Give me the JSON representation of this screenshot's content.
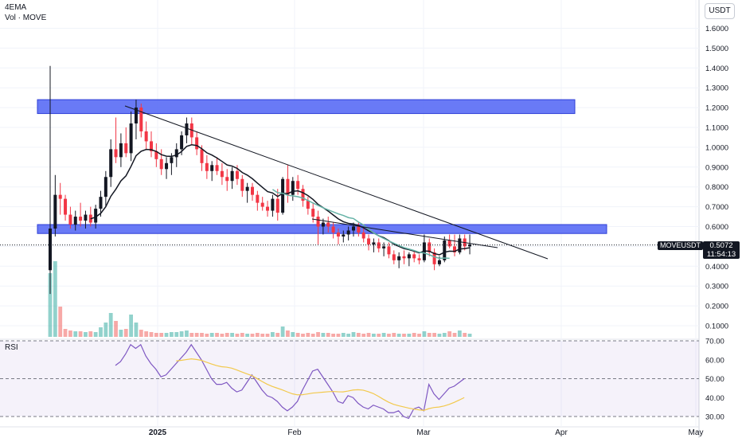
{
  "header": {
    "indicator": "4EMA",
    "volume_label": "Vol · MOVE",
    "currency": "USDT"
  },
  "price_tag": {
    "symbol": "MOVEUSDT",
    "price": "0.5072",
    "countdown": "11:54:13"
  },
  "rsi_label": "RSI",
  "colors": {
    "up": "#131722",
    "down": "#f23645",
    "zone": "#4f63f5",
    "ema": "#131722",
    "ma": "#66b3a7",
    "rsi": "#7e57c2",
    "rsi_ma": "#f2c94c"
  },
  "chart_data": {
    "type": "candlestick",
    "y_axis": {
      "ticks": [
        "1.6000",
        "1.5000",
        "1.4000",
        "1.3000",
        "1.2000",
        "1.1000",
        "1.0000",
        "0.9000",
        "0.8000",
        "0.7000",
        "0.6000",
        "0.5000",
        "0.4000",
        "0.3000",
        "0.2000",
        "0.1000"
      ],
      "range": [
        0.05,
        1.65
      ]
    },
    "x_axis": {
      "ticks": [
        "2025",
        "Feb",
        "Mar",
        "Apr",
        "May"
      ]
    },
    "ohlc": [
      [
        0.38,
        1.41,
        0.26,
        0.59
      ],
      [
        0.59,
        0.86,
        0.55,
        0.76
      ],
      [
        0.76,
        0.82,
        0.66,
        0.74
      ],
      [
        0.74,
        0.76,
        0.63,
        0.66
      ],
      [
        0.66,
        0.7,
        0.59,
        0.61
      ],
      [
        0.61,
        0.68,
        0.58,
        0.65
      ],
      [
        0.65,
        0.72,
        0.6,
        0.63
      ],
      [
        0.63,
        0.68,
        0.59,
        0.66
      ],
      [
        0.66,
        0.7,
        0.6,
        0.62
      ],
      [
        0.62,
        0.71,
        0.59,
        0.69
      ],
      [
        0.69,
        0.78,
        0.65,
        0.75
      ],
      [
        0.75,
        0.88,
        0.7,
        0.85
      ],
      [
        0.85,
        1.04,
        0.8,
        0.99
      ],
      [
        0.99,
        1.15,
        0.92,
        0.95
      ],
      [
        0.95,
        1.07,
        0.9,
        1.02
      ],
      [
        1.02,
        1.1,
        0.95,
        0.97
      ],
      [
        0.97,
        1.18,
        0.93,
        1.12
      ],
      [
        1.12,
        1.24,
        1.04,
        1.2
      ],
      [
        1.2,
        1.22,
        1.05,
        1.08
      ],
      [
        1.08,
        1.13,
        0.99,
        1.03
      ],
      [
        1.03,
        1.08,
        0.95,
        0.98
      ],
      [
        0.98,
        1.02,
        0.9,
        0.94
      ],
      [
        0.94,
        0.99,
        0.86,
        0.89
      ],
      [
        0.89,
        0.95,
        0.84,
        0.92
      ],
      [
        0.92,
        0.97,
        0.86,
        0.95
      ],
      [
        0.95,
        1.02,
        0.9,
        0.99
      ],
      [
        0.99,
        1.08,
        0.96,
        1.06
      ],
      [
        1.06,
        1.15,
        1.02,
        1.12
      ],
      [
        1.12,
        1.15,
        1.01,
        1.05
      ],
      [
        1.05,
        1.08,
        0.96,
        0.99
      ],
      [
        0.99,
        1.01,
        0.88,
        0.92
      ],
      [
        0.92,
        0.96,
        0.84,
        0.88
      ],
      [
        0.88,
        0.93,
        0.83,
        0.91
      ],
      [
        0.91,
        0.95,
        0.86,
        0.88
      ],
      [
        0.88,
        0.92,
        0.81,
        0.85
      ],
      [
        0.85,
        0.89,
        0.78,
        0.83
      ],
      [
        0.83,
        0.9,
        0.79,
        0.88
      ],
      [
        0.88,
        0.91,
        0.81,
        0.84
      ],
      [
        0.84,
        0.86,
        0.75,
        0.78
      ],
      [
        0.78,
        0.82,
        0.72,
        0.8
      ],
      [
        0.8,
        0.82,
        0.73,
        0.76
      ],
      [
        0.76,
        0.78,
        0.68,
        0.72
      ],
      [
        0.72,
        0.75,
        0.68,
        0.7
      ],
      [
        0.7,
        0.73,
        0.65,
        0.68
      ],
      [
        0.68,
        0.76,
        0.65,
        0.74
      ],
      [
        0.74,
        0.79,
        0.63,
        0.67
      ],
      [
        0.67,
        0.85,
        0.66,
        0.84
      ],
      [
        0.84,
        0.91,
        0.72,
        0.76
      ],
      [
        0.76,
        0.85,
        0.73,
        0.83
      ],
      [
        0.83,
        0.86,
        0.76,
        0.79
      ],
      [
        0.79,
        0.81,
        0.7,
        0.73
      ],
      [
        0.73,
        0.75,
        0.66,
        0.69
      ],
      [
        0.69,
        0.72,
        0.62,
        0.65
      ],
      [
        0.65,
        0.68,
        0.51,
        0.6
      ],
      [
        0.6,
        0.64,
        0.56,
        0.62
      ],
      [
        0.62,
        0.65,
        0.57,
        0.6
      ],
      [
        0.6,
        0.62,
        0.54,
        0.57
      ],
      [
        0.57,
        0.59,
        0.51,
        0.55
      ],
      [
        0.55,
        0.58,
        0.52,
        0.56
      ],
      [
        0.56,
        0.6,
        0.53,
        0.58
      ],
      [
        0.58,
        0.62,
        0.55,
        0.6
      ],
      [
        0.6,
        0.62,
        0.55,
        0.57
      ],
      [
        0.57,
        0.59,
        0.52,
        0.54
      ],
      [
        0.54,
        0.56,
        0.48,
        0.51
      ],
      [
        0.51,
        0.54,
        0.47,
        0.52
      ],
      [
        0.52,
        0.54,
        0.47,
        0.49
      ],
      [
        0.49,
        0.52,
        0.45,
        0.5
      ],
      [
        0.5,
        0.52,
        0.44,
        0.46
      ],
      [
        0.46,
        0.48,
        0.41,
        0.43
      ],
      [
        0.43,
        0.47,
        0.39,
        0.45
      ],
      [
        0.45,
        0.48,
        0.41,
        0.44
      ],
      [
        0.44,
        0.47,
        0.4,
        0.46
      ],
      [
        0.46,
        0.48,
        0.42,
        0.44
      ],
      [
        0.44,
        0.46,
        0.41,
        0.43
      ],
      [
        0.43,
        0.56,
        0.42,
        0.52
      ],
      [
        0.52,
        0.54,
        0.45,
        0.47
      ],
      [
        0.47,
        0.49,
        0.38,
        0.41
      ],
      [
        0.41,
        0.45,
        0.4,
        0.43
      ],
      [
        0.43,
        0.55,
        0.42,
        0.53
      ],
      [
        0.53,
        0.56,
        0.49,
        0.5
      ],
      [
        0.5,
        0.56,
        0.45,
        0.47
      ],
      [
        0.47,
        0.56,
        0.46,
        0.54
      ],
      [
        0.54,
        0.56,
        0.48,
        0.5
      ],
      [
        0.5,
        0.56,
        0.46,
        0.51
      ]
    ],
    "volume": [
      0.8,
      0.95,
      0.38,
      0.1,
      0.08,
      0.07,
      0.07,
      0.06,
      0.07,
      0.06,
      0.12,
      0.18,
      0.3,
      0.2,
      0.09,
      0.1,
      0.28,
      0.18,
      0.09,
      0.07,
      0.06,
      0.05,
      0.05,
      0.05,
      0.06,
      0.06,
      0.07,
      0.08,
      0.05,
      0.05,
      0.05,
      0.04,
      0.05,
      0.05,
      0.04,
      0.05,
      0.05,
      0.04,
      0.05,
      0.04,
      0.04,
      0.05,
      0.04,
      0.04,
      0.06,
      0.05,
      0.13,
      0.08,
      0.06,
      0.05,
      0.04,
      0.05,
      0.04,
      0.06,
      0.05,
      0.05,
      0.04,
      0.04,
      0.05,
      0.04,
      0.06,
      0.05,
      0.04,
      0.05,
      0.04,
      0.04,
      0.05,
      0.04,
      0.05,
      0.04,
      0.04,
      0.04,
      0.05,
      0.04,
      0.07,
      0.05,
      0.05,
      0.04,
      0.05,
      0.07,
      0.05,
      0.08,
      0.05,
      0.04
    ],
    "annotations": {
      "resistance_zone": [
        1.17,
        1.24
      ],
      "support_zone": [
        0.565,
        0.61
      ],
      "current_price": 0.5072
    },
    "rsi": {
      "ticks": [
        "70.00",
        "60.00",
        "50.00",
        "40.00",
        "30.00"
      ],
      "range": [
        28,
        72
      ],
      "values": [
        57,
        59,
        63,
        68,
        66,
        68,
        62,
        58,
        55,
        51,
        52,
        55,
        58,
        61,
        64,
        68,
        64,
        60,
        55,
        50,
        47,
        47,
        48,
        45,
        43,
        44,
        48,
        52,
        48,
        44,
        41,
        40,
        38,
        35,
        33,
        35,
        38,
        44,
        49,
        54,
        55,
        51,
        47,
        43,
        38,
        37,
        41,
        40,
        37,
        35,
        34,
        36,
        35,
        34,
        32,
        32,
        33,
        30,
        29,
        34,
        35,
        33,
        47,
        42,
        39,
        42,
        45,
        46,
        48,
        50
      ]
    }
  }
}
